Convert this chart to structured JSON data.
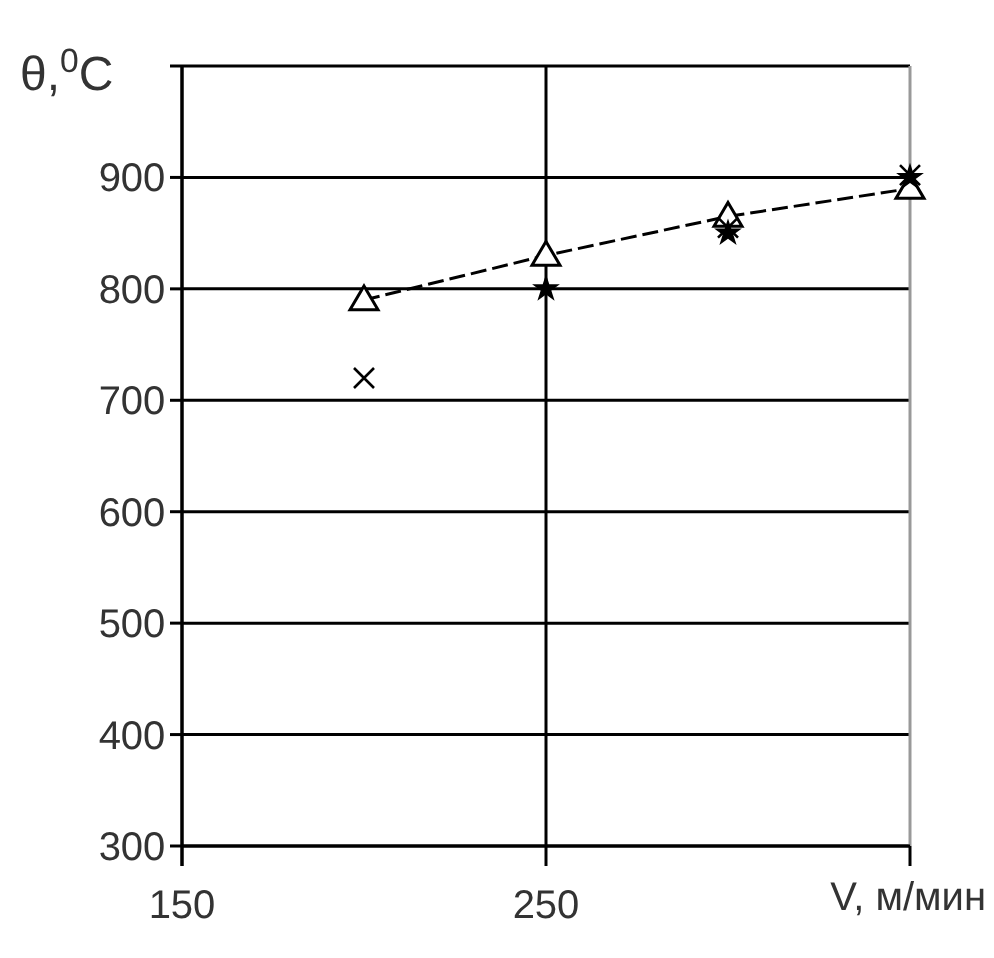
{
  "chart_data": {
    "type": "line",
    "ylabel": "θ,$^{0}$C",
    "xlabel": "V, м/мин",
    "x": [
      200,
      250,
      300,
      350
    ],
    "series": [
      {
        "color": "#000000",
        "marker": "triangle",
        "line_style": "dashed",
        "values": [
          790,
          830,
          865,
          890
        ]
      },
      {
        "type": "scatter",
        "color": "#000000",
        "marker": "star",
        "values": [
          null,
          800,
          850,
          900
        ]
      },
      {
        "type": "scatter",
        "color": "#000000",
        "marker": "cross",
        "values": [
          720,
          null,
          855,
          902
        ]
      }
    ],
    "xlim": [
      150,
      350
    ],
    "xticks": [
      150,
      250,
      {
        "value": 350,
        "label": null
      }
    ],
    "ylim": [
      300,
      1000
    ],
    "yticks": [
      300,
      400,
      500,
      600,
      700,
      800,
      900,
      {
        "value": 1000,
        "label": null
      }
    ],
    "grid": true
  }
}
